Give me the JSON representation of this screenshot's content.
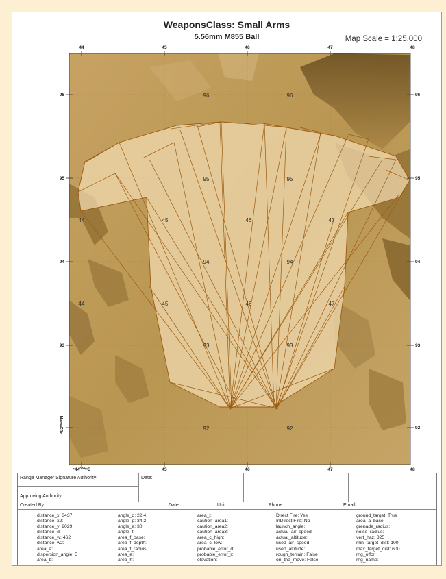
{
  "header": {
    "title": "WeaponsClass: Small Arms",
    "subtitle": "5.56mm M855 Ball",
    "map_scale": "Map Scale = 1:25,000"
  },
  "map": {
    "top_easting_labels": [
      "44",
      "45",
      "46",
      "47",
      "48"
    ],
    "bottom_easting_labels": [
      "⁴44⁰⁰⁰ᵐE",
      "45",
      "46",
      "47",
      "48"
    ],
    "left_northing_labels": [
      "96",
      "95",
      "94",
      "93",
      "⁴92⁰⁰⁰ᵐN"
    ],
    "right_northing_labels": [
      "96",
      "95",
      "94",
      "93",
      "92"
    ],
    "grid_labels": [
      "96",
      "96",
      "95",
      "95",
      "44",
      "45",
      "46",
      "47",
      "94",
      "94",
      "44",
      "45",
      "46",
      "47",
      "93",
      "93",
      "92",
      "92"
    ],
    "colors": {
      "terrain": "#c09a58",
      "terrain_dark": "#7a5a25",
      "fan_fill": "#f2dcb3",
      "fan_stroke": "#9b5a10"
    }
  },
  "form": {
    "signature_authority_label": "Range Manager Signature Authority:",
    "date_label_1": "Date:",
    "approving_authority_label": "Approving Authority:",
    "created_by_label": "Created By:",
    "date_label_2": "Date:",
    "unit_label": "Unit:",
    "phone_label": "Phone:",
    "email_label": "Email:",
    "params": {
      "col1": [
        "distance_x:  3437",
        "distance_x2:",
        "distance_y:  2029",
        "distance_d:",
        "distance_w:  462",
        "distance_w2:",
        "area_a:",
        "dispersion_angle:  5",
        "area_b:"
      ],
      "col2": [
        "angle_q:  22.4",
        "angle_p:  34.2",
        "angle_a:  30",
        "angle_f:",
        "area_f_base:",
        "area_f_depth:",
        "area_f_radius:",
        "area_e:",
        "area_h:"
      ],
      "col3": [
        "area_i:",
        "caution_area1:",
        "caution_area2:",
        "caution_area3:",
        "area_c_high:",
        "area_c_low:",
        "probable_error_d:",
        "probable_error_r:",
        "elevation:"
      ],
      "col4": [
        "Direct Fire: Yes",
        "InDirect Fire: No",
        "launch_angle:",
        "actual_air_speed:",
        "actual_altitude:",
        "used_air_speed:",
        "used_altitude:",
        "rough_terrain:  False",
        "on_the_move:  False"
      ],
      "col5": [
        "ground_target:  True",
        "area_a_base:",
        "grenade_radius:",
        "noise_radius:",
        "vert_haz:  325",
        "min_target_dist:  100",
        "max_target_dist:  600",
        "rng_offcr:",
        "rng_name:"
      ]
    }
  }
}
